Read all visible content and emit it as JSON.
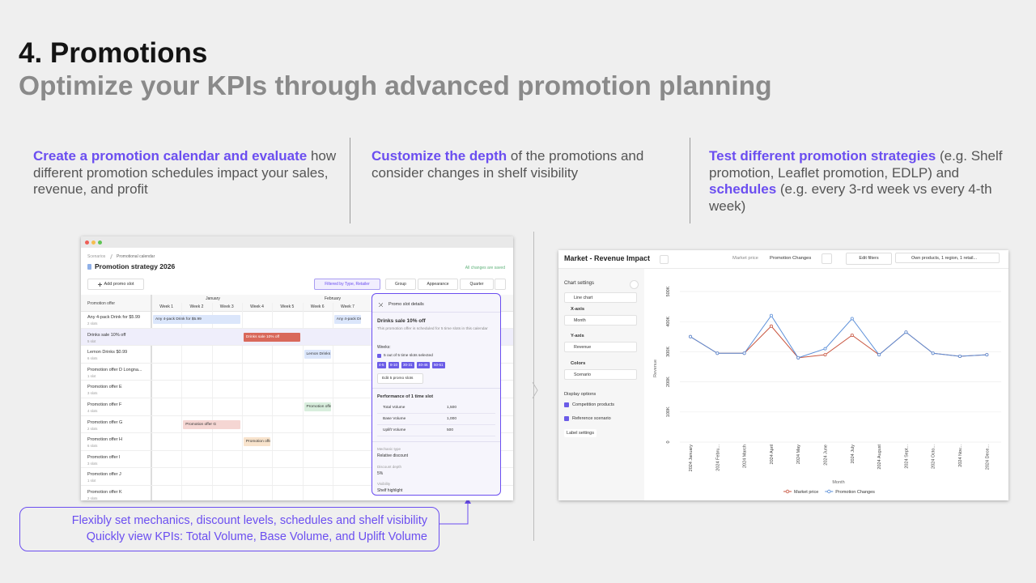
{
  "header": {
    "title": "4. Promotions",
    "subtitle": "Optimize your KPIs through advanced promotion planning"
  },
  "columns": [
    {
      "parts": [
        {
          "text": "Create a promotion calendar and evaluate",
          "highlight": true
        },
        {
          "text": "how different promotion schedules impact your sales, revenue, and profit",
          "highlight": false
        }
      ]
    },
    {
      "parts": [
        {
          "text": "Customize the depth",
          "highlight": true
        },
        {
          "text": "of the promotions and consider changes in shelf visibility",
          "highlight": false
        }
      ]
    },
    {
      "parts": [
        {
          "text": "Test different promotion strategies",
          "highlight": true
        },
        {
          "text": "(e.g. Shelf promotion, Leaflet promotion, EDLP) and",
          "highlight": false
        },
        {
          "text": "schedules",
          "highlight": true
        },
        {
          "text": "(e.g. every 3-rd week vs every 4-th week)",
          "highlight": false
        }
      ]
    }
  ],
  "calendar": {
    "breadcrumb": [
      "Scenarios",
      "Promotional calendar"
    ],
    "title": "Promotion strategy 2026",
    "status": "All changes are saved",
    "add_button": "Add promo slot",
    "filters": [
      "Filtered by Type, Retailer",
      "Group",
      "Appearance",
      "Quarter"
    ],
    "column_header": "Promotion offer",
    "months": [
      "January",
      "February"
    ],
    "weeks": [
      "Week 1",
      "Week 2",
      "Week 3",
      "Week 4",
      "Week 5",
      "Week 6",
      "Week 7"
    ],
    "rows": [
      {
        "name": "Any 4-pack Drink for $5.99",
        "slots": "2 slots",
        "bars": [
          {
            "label": "Any 4-pack Drink for $5.99",
            "color": "#dbe6fb"
          },
          {
            "label": "Any 4-pack Dri",
            "color": "#dbe6fb"
          }
        ]
      },
      {
        "name": "Drinks sale 10% off",
        "slots": "5 slot",
        "selected": true,
        "bars": [
          {
            "label": "Drinks sale 10% off",
            "color": "#d9685a"
          }
        ]
      },
      {
        "name": "Lemon Drinks $0.99",
        "slots": "6 slots",
        "bars": [
          {
            "label": "Lemon Drinks $",
            "color": "#dbe6fb"
          }
        ]
      },
      {
        "name": "Promotion offer D Longna...",
        "slots": "1 slot",
        "bars": []
      },
      {
        "name": "Promotion offer E",
        "slots": "3 slots",
        "bars": []
      },
      {
        "name": "Promotion offer F",
        "slots": "4 slots",
        "bars": [
          {
            "label": "Promotion offer F",
            "color": "#d8eedd"
          }
        ]
      },
      {
        "name": "Promotion offer G",
        "slots": "2 slots",
        "bars": [
          {
            "label": "Promotion offer G",
            "color": "#f5d6d3"
          }
        ]
      },
      {
        "name": "Promotion offer H",
        "slots": "6 slots",
        "bars": [
          {
            "label": "Promotion offe",
            "color": "#f8e3cc"
          }
        ]
      },
      {
        "name": "Promotion offer I",
        "slots": "3 slots",
        "bars": []
      },
      {
        "name": "Promotion offer J",
        "slots": "1 slot",
        "bars": []
      },
      {
        "name": "Promotion offer K",
        "slots": "2 slots",
        "bars": []
      }
    ]
  },
  "details": {
    "title": "Promo slot details",
    "offer": "Drinks sale 10% off",
    "note": "This promotion offer is scheduled for 5 time slots in this calendar",
    "weeks_label": "Weeks:",
    "selected": "5 out of 5 time slots selected",
    "chips": [
      "4-5",
      "8-10",
      "30-31",
      "40-46",
      "50-51"
    ],
    "edit_button": "Edit 5 promo slots",
    "performance_title": "Performance of 1 time slot",
    "metrics": [
      {
        "name": "Total Volume",
        "value": "1,500"
      },
      {
        "name": "Base Volume",
        "value": "1,000"
      },
      {
        "name": "Uplift Volume",
        "value": "500"
      }
    ],
    "fields": [
      {
        "label": "Mechanic type",
        "value": "Relative discount"
      },
      {
        "label": "Discount depth",
        "value": "5%"
      },
      {
        "label": "Visibility",
        "value": "Shelf highlight"
      }
    ]
  },
  "callout": {
    "lines": [
      "Flexibly set mechanics, discount levels, schedules and shelf visibility",
      "Quickly view KPIs: Total Volume, Base Volume, and Uplift Volume"
    ]
  },
  "revenue_panel": {
    "title": "Market - Revenue Impact",
    "scenario_label": "Market price",
    "scenario_value": "Promotion Changes",
    "filter_button": "Edit filters",
    "scope": "Own products, 1 region, 1 retail...",
    "settings": {
      "title": "Chart settings",
      "chart_type": "Line chart",
      "x_label": "X-axis",
      "x_value": "Month",
      "y_label": "Y-axis",
      "y_value": "Revenue",
      "color_label": "Colors",
      "color_value": "Scenario",
      "display_title": "Display options",
      "options": [
        "Competition products",
        "Reference scenario"
      ],
      "label_settings": "Label settings"
    }
  },
  "chart_data": {
    "type": "line",
    "x_label": "Month",
    "y_label": "Revenue",
    "categories": [
      "2024 January",
      "2024 Febru...",
      "2024 March",
      "2024 April",
      "2024 May",
      "2024 June",
      "2024 July",
      "2024 August",
      "2024 Sept...",
      "2024 Octo...",
      "2024 Nov...",
      "2024 Dece..."
    ],
    "series": [
      {
        "name": "Market price",
        "color": "#c8553f",
        "values": [
          350000,
          295000,
          295000,
          385000,
          280000,
          290000,
          355000,
          290000,
          365000,
          295000,
          285000,
          290000
        ]
      },
      {
        "name": "Promotion Changes",
        "color": "#5b8fd9",
        "values": [
          350000,
          295000,
          295000,
          420000,
          280000,
          310000,
          410000,
          290000,
          365000,
          295000,
          285000,
          290000
        ]
      }
    ],
    "ylim": [
      0,
      500000
    ],
    "yticks": [
      0,
      {
        "value": 100000,
        "label": "100K"
      },
      {
        "value": 200000,
        "label": "200K"
      },
      {
        "value": 300000,
        "label": "300K"
      },
      {
        "value": 400000,
        "label": "400K"
      },
      {
        "value": 500000,
        "label": "500K"
      }
    ],
    "grid": true
  }
}
